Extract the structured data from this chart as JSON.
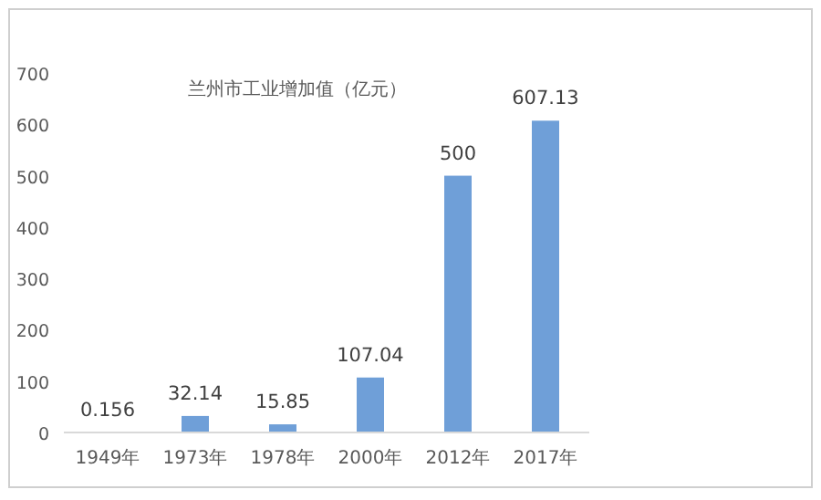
{
  "chart_data": {
    "type": "bar",
    "title": "兰州市工业增加值（亿元）",
    "categories": [
      "1949年",
      "1973年",
      "1978年",
      "2000年",
      "2012年",
      "2017年"
    ],
    "values": [
      0.156,
      32.14,
      15.85,
      107.04,
      500,
      607.13
    ],
    "color": "#6f9fd8",
    "ylim": [
      0,
      700
    ],
    "yticks": [
      0,
      100,
      200,
      300,
      400,
      500,
      600,
      700
    ],
    "data_labels": true
  }
}
